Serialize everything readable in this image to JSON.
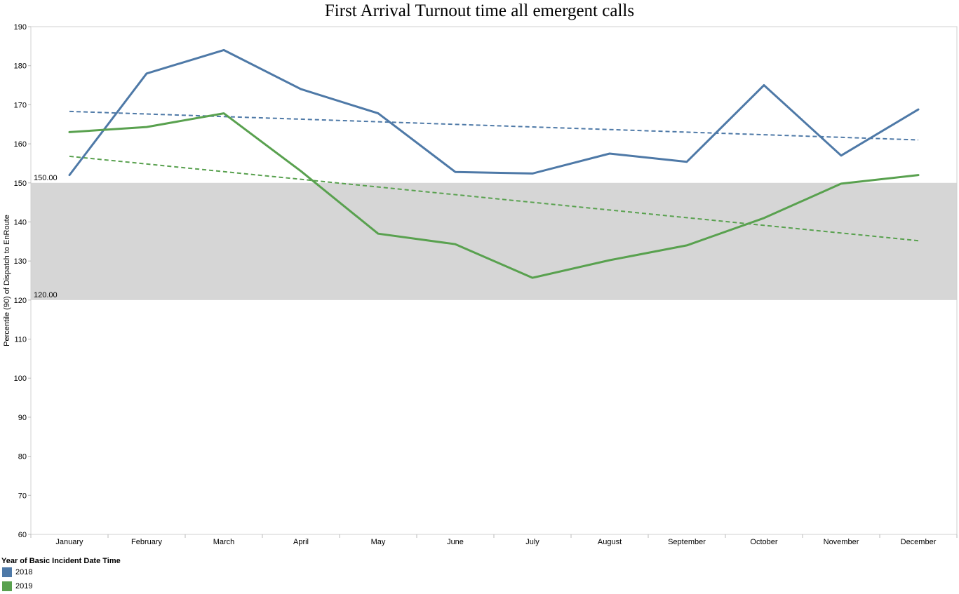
{
  "chart_data": {
    "type": "line",
    "title": "First Arrival Turnout time all emergent calls",
    "xlabel": "",
    "ylabel": "Percentile (90) of Dispatch to EnRoute",
    "categories": [
      "January",
      "February",
      "March",
      "April",
      "May",
      "June",
      "July",
      "August",
      "September",
      "October",
      "November",
      "December"
    ],
    "ylim": [
      60,
      190
    ],
    "yticks": [
      60,
      70,
      80,
      90,
      100,
      110,
      120,
      130,
      140,
      150,
      160,
      170,
      180,
      190
    ],
    "reference_band": {
      "low": 120,
      "high": 150,
      "low_label": "120.00",
      "high_label": "150.00",
      "color": "#d6d6d6"
    },
    "series": [
      {
        "name": "2018",
        "color": "#4e79a7",
        "values": [
          152,
          178,
          184,
          174,
          167.8,
          152.8,
          152.4,
          157.5,
          155.4,
          175,
          157,
          168.8
        ],
        "trend": [
          168.3,
          161
        ]
      },
      {
        "name": "2019",
        "color": "#59a14f",
        "values": [
          163,
          164.3,
          167.8,
          153,
          137,
          134.3,
          125.7,
          130.2,
          134,
          141,
          149.8,
          152
        ],
        "trend": [
          156.8,
          135.2
        ]
      }
    ],
    "legend": {
      "title": "Year of Basic Incident Date Time",
      "position": "bottom-left"
    },
    "grid": false
  }
}
